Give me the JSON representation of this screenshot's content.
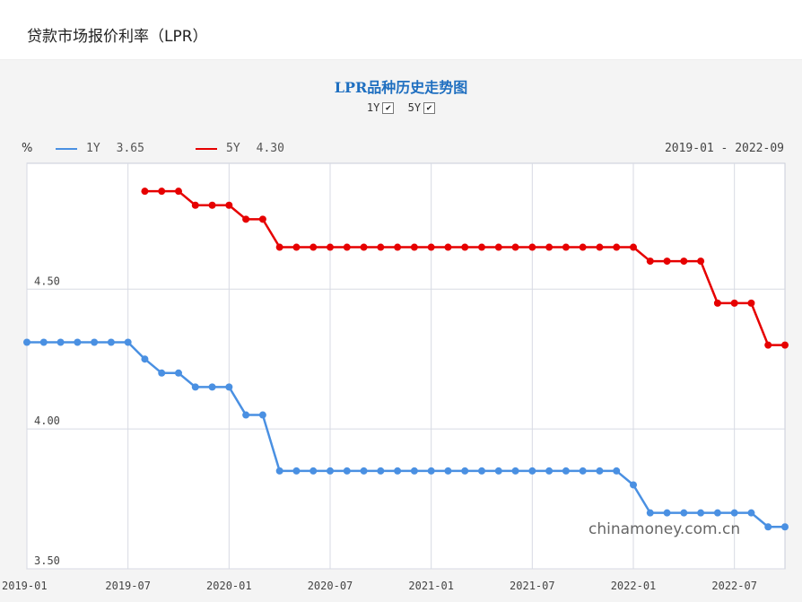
{
  "page": {
    "title": "贷款市场报价利率（LPR）"
  },
  "chart_data": {
    "type": "line",
    "title": "LPR品种历史走势图",
    "unit": "%",
    "date_range": "2019-01 - 2022-09",
    "toggles": [
      {
        "label": "1Y",
        "checked": true
      },
      {
        "label": "5Y",
        "checked": true
      }
    ],
    "legend": [
      {
        "name": "1Y",
        "value": "3.65",
        "color": "#4a90e2"
      },
      {
        "name": "5Y",
        "value": "4.30",
        "color": "#e60000"
      }
    ],
    "ylim": [
      3.5,
      4.95
    ],
    "y_ticks": [
      "3.50",
      "4.00",
      "4.50"
    ],
    "x_ticks": [
      "2019-01",
      "2019-07",
      "2020-01",
      "2020-07",
      "2021-01",
      "2021-07",
      "2022-01",
      "2022-07"
    ],
    "grid": true,
    "series": [
      {
        "name": "1Y",
        "color": "#4a90e2",
        "values": [
          4.31,
          4.31,
          4.31,
          4.31,
          4.31,
          4.31,
          4.31,
          4.25,
          4.2,
          4.2,
          4.15,
          4.15,
          4.15,
          4.05,
          4.05,
          3.85,
          3.85,
          3.85,
          3.85,
          3.85,
          3.85,
          3.85,
          3.85,
          3.85,
          3.85,
          3.85,
          3.85,
          3.85,
          3.85,
          3.85,
          3.85,
          3.85,
          3.85,
          3.85,
          3.85,
          3.85,
          3.8,
          3.7,
          3.7,
          3.7,
          3.7,
          3.7,
          3.7,
          3.7,
          3.65,
          3.65
        ]
      },
      {
        "name": "5Y",
        "color": "#e60000",
        "values": [
          null,
          null,
          null,
          null,
          null,
          null,
          null,
          4.85,
          4.85,
          4.85,
          4.8,
          4.8,
          4.8,
          4.75,
          4.75,
          4.65,
          4.65,
          4.65,
          4.65,
          4.65,
          4.65,
          4.65,
          4.65,
          4.65,
          4.65,
          4.65,
          4.65,
          4.65,
          4.65,
          4.65,
          4.65,
          4.65,
          4.65,
          4.65,
          4.65,
          4.65,
          4.65,
          4.6,
          4.6,
          4.6,
          4.6,
          4.45,
          4.45,
          4.45,
          4.3,
          4.3
        ]
      }
    ]
  },
  "watermark": "chinamoney.com.cn"
}
